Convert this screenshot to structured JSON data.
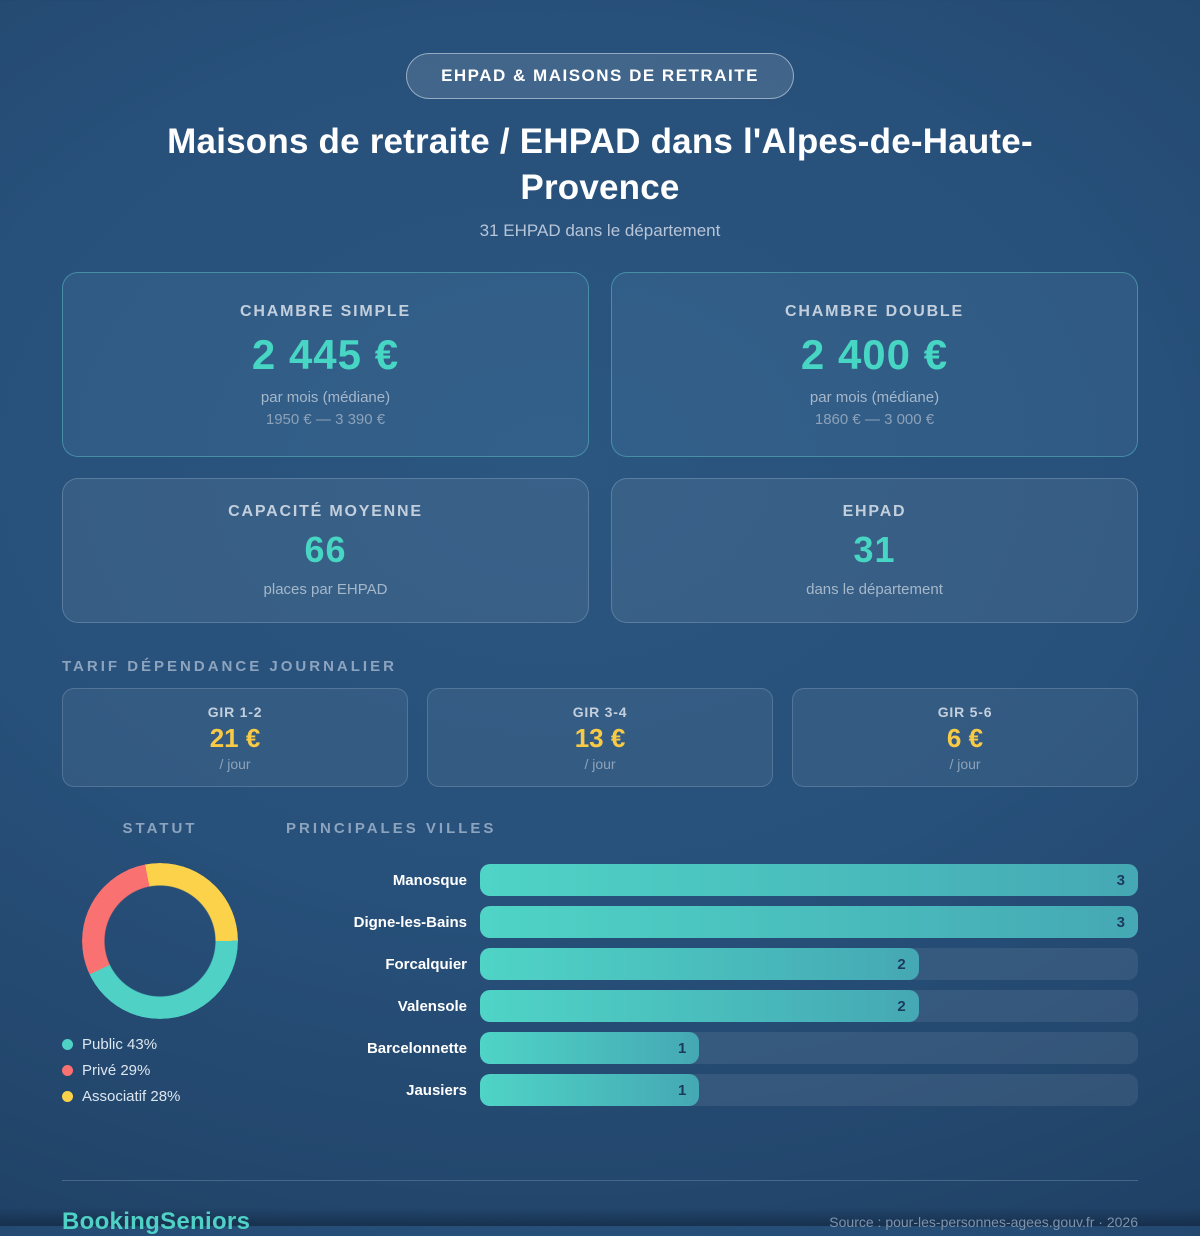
{
  "badge": {
    "label": "EHPAD & MAISONS DE RETRAITE"
  },
  "header": {
    "title": "Maisons de retraite / EHPAD dans l'Alpes-de-Haute-Provence",
    "subtitle": "31 EHPAD dans le département"
  },
  "stat_cards": [
    {
      "label": "CHAMBRE SIMPLE",
      "value": "2 445 €",
      "sub": "par mois (médiane)",
      "range": "1950 € — 3 390 €"
    },
    {
      "label": "CHAMBRE DOUBLE",
      "value": "2 400 €",
      "sub": "par mois (médiane)",
      "range": "1860 € — 3 000 €"
    },
    {
      "label": "CAPACITÉ MOYENNE",
      "value": "66",
      "sub": "places par EHPAD"
    },
    {
      "label": "EHPAD",
      "value": "31",
      "sub": "dans le département"
    }
  ],
  "tarif_section": {
    "title": "TARIF DÉPENDANCE JOURNALIER",
    "cards": [
      {
        "label": "GIR 1-2",
        "value": "21 €",
        "unit": "/ jour"
      },
      {
        "label": "GIR 3-4",
        "value": "13 €",
        "unit": "/ jour"
      },
      {
        "label": "GIR 5-6",
        "value": "6 €",
        "unit": "/ jour"
      }
    ]
  },
  "chart_data": [
    {
      "type": "pie",
      "title": "STATUT",
      "labels": [
        "Public",
        "Privé",
        "Associatif"
      ],
      "values": [
        43,
        29,
        28
      ],
      "colors": [
        "#4fd1c5",
        "#f97170",
        "#fbd24a"
      ],
      "legend_entries": [
        "Public 43%",
        "Privé 29%",
        "Associatif 28%"
      ],
      "legend_position": "bottom-left",
      "donut": true
    },
    {
      "type": "bar",
      "title": "PRINCIPALES VILLES",
      "orientation": "horizontal",
      "categories": [
        "Manosque",
        "Digne-les-Bains",
        "Forcalquier",
        "Valensole",
        "Barcelonnette",
        "Jausiers"
      ],
      "values": [
        3,
        3,
        2,
        2,
        1,
        1
      ],
      "xlim": [
        0,
        3
      ],
      "bar_color_start": "#4fd4c6",
      "bar_color_end": "#45a8b4"
    }
  ],
  "footer": {
    "brand": "BookingSeniors",
    "source": "Source : pour-les-personnes-agees.gouv.fr · 2026"
  }
}
